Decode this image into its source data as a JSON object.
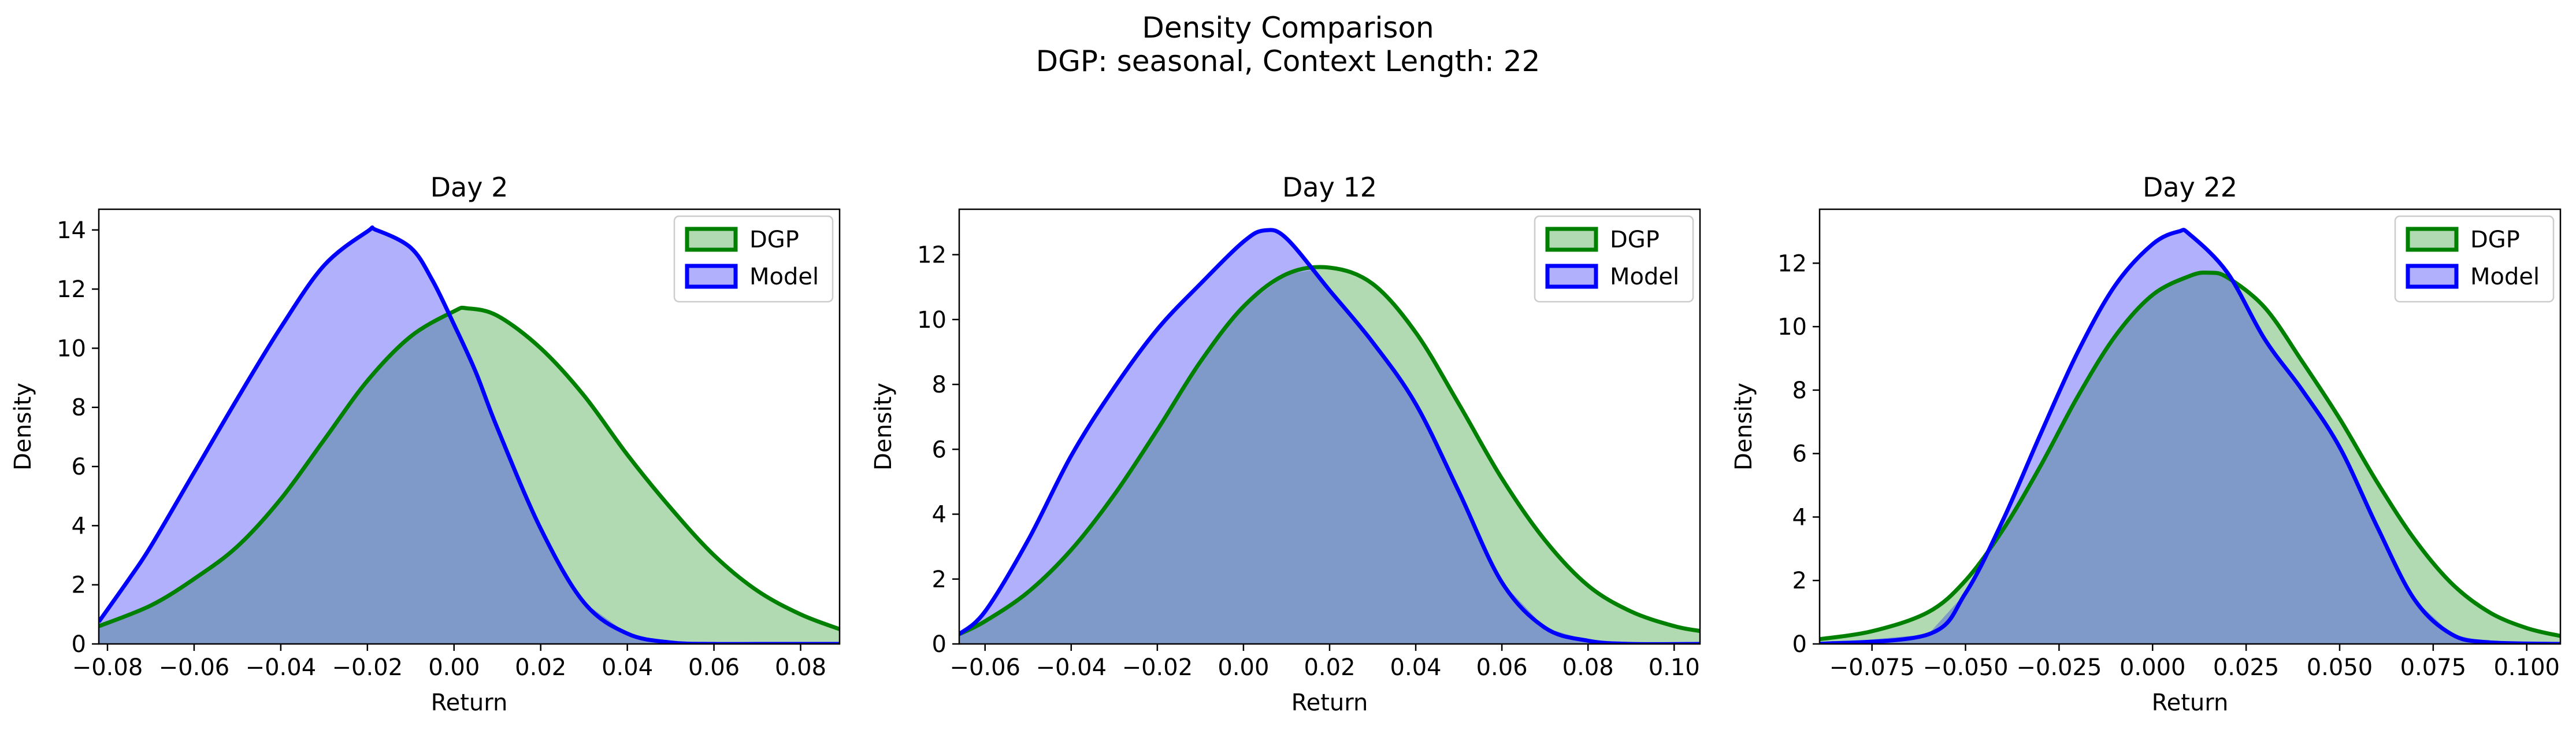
{
  "figure": {
    "title_line1": "Density Comparison",
    "title_line2": "DGP: seasonal, Context Length: 22"
  },
  "colors": {
    "dgp_line": "#008000",
    "dgp_fill": "#b2dab2",
    "model_line": "#0000ff",
    "model_fill": "#b0b0fc",
    "overlap_fill": "#7f99c9"
  },
  "chart_data": [
    {
      "type": "area",
      "title": "Day 2",
      "xlabel": "Return",
      "ylabel": "Density",
      "xlim": [
        -0.082,
        0.089
      ],
      "ylim": [
        0,
        14.7
      ],
      "xticks": [
        -0.08,
        -0.06,
        -0.04,
        -0.02,
        0.0,
        0.02,
        0.04,
        0.06,
        0.08
      ],
      "xtick_labels": [
        "−0.08",
        "−0.06",
        "−0.04",
        "−0.02",
        "0.00",
        "0.02",
        "0.04",
        "0.06",
        "0.08"
      ],
      "yticks": [
        0,
        2,
        4,
        6,
        8,
        10,
        12,
        14
      ],
      "ytick_labels": [
        "0",
        "2",
        "4",
        "6",
        "8",
        "10",
        "12",
        "14"
      ],
      "legend": {
        "placement": "upper right",
        "entries": [
          "DGP",
          "Model"
        ]
      },
      "series": [
        {
          "name": "DGP",
          "x": [
            -0.082,
            -0.07,
            -0.06,
            -0.05,
            -0.04,
            -0.03,
            -0.02,
            -0.01,
            0.0,
            0.003,
            0.01,
            0.02,
            0.03,
            0.04,
            0.05,
            0.06,
            0.07,
            0.08,
            0.089
          ],
          "y": [
            0.6,
            1.3,
            2.2,
            3.3,
            4.9,
            6.9,
            8.9,
            10.4,
            11.25,
            11.35,
            11.1,
            10.0,
            8.4,
            6.4,
            4.6,
            3.0,
            1.8,
            1.0,
            0.5
          ]
        },
        {
          "name": "Model",
          "x": [
            -0.082,
            -0.075,
            -0.07,
            -0.06,
            -0.05,
            -0.04,
            -0.03,
            -0.02,
            -0.018,
            -0.01,
            -0.005,
            0.0,
            0.005,
            0.01,
            0.02,
            0.03,
            0.04,
            0.05,
            0.06,
            0.07,
            0.089
          ],
          "y": [
            0.75,
            2.2,
            3.3,
            5.8,
            8.3,
            10.7,
            12.8,
            13.95,
            14.0,
            13.4,
            12.3,
            10.8,
            9.2,
            7.3,
            3.9,
            1.4,
            0.35,
            0.05,
            0.0,
            0.0,
            0.0
          ]
        }
      ]
    },
    {
      "type": "area",
      "title": "Day 12",
      "xlabel": "Return",
      "ylabel": "Density",
      "xlim": [
        -0.066,
        0.106
      ],
      "ylim": [
        0,
        13.4
      ],
      "xticks": [
        -0.06,
        -0.04,
        -0.02,
        0.0,
        0.02,
        0.04,
        0.06,
        0.08,
        0.1
      ],
      "xtick_labels": [
        "−0.06",
        "−0.04",
        "−0.02",
        "0.00",
        "0.02",
        "0.04",
        "0.06",
        "0.08",
        "0.10"
      ],
      "yticks": [
        0,
        2,
        4,
        6,
        8,
        10,
        12
      ],
      "ytick_labels": [
        "0",
        "2",
        "4",
        "6",
        "8",
        "10",
        "12"
      ],
      "legend": {
        "placement": "upper right",
        "entries": [
          "DGP",
          "Model"
        ]
      },
      "series": [
        {
          "name": "DGP",
          "x": [
            -0.066,
            -0.06,
            -0.05,
            -0.04,
            -0.03,
            -0.02,
            -0.01,
            0.0,
            0.01,
            0.02,
            0.03,
            0.04,
            0.05,
            0.06,
            0.07,
            0.08,
            0.09,
            0.1,
            0.106
          ],
          "y": [
            0.3,
            0.7,
            1.6,
            2.9,
            4.6,
            6.6,
            8.7,
            10.4,
            11.4,
            11.6,
            11.1,
            9.6,
            7.4,
            5.1,
            3.2,
            1.8,
            1.0,
            0.55,
            0.4
          ]
        },
        {
          "name": "Model",
          "x": [
            -0.066,
            -0.06,
            -0.05,
            -0.04,
            -0.03,
            -0.02,
            -0.01,
            0.0,
            0.005,
            0.01,
            0.02,
            0.03,
            0.04,
            0.05,
            0.06,
            0.07,
            0.08,
            0.09,
            0.106
          ],
          "y": [
            0.3,
            1.0,
            3.2,
            5.8,
            7.9,
            9.7,
            11.1,
            12.4,
            12.75,
            12.5,
            10.9,
            9.3,
            7.4,
            4.7,
            1.9,
            0.5,
            0.1,
            0.0,
            0.0
          ]
        }
      ]
    },
    {
      "type": "area",
      "title": "Day 22",
      "xlabel": "Return",
      "ylabel": "Density",
      "xlim": [
        -0.089,
        0.109
      ],
      "ylim": [
        0,
        13.7
      ],
      "xticks": [
        -0.075,
        -0.05,
        -0.025,
        0.0,
        0.025,
        0.05,
        0.075,
        0.1
      ],
      "xtick_labels": [
        "−0.075",
        "−0.050",
        "−0.025",
        "0.000",
        "0.025",
        "0.050",
        "0.075",
        "0.100"
      ],
      "yticks": [
        0,
        2,
        4,
        6,
        8,
        10,
        12
      ],
      "ytick_labels": [
        "0",
        "2",
        "4",
        "6",
        "8",
        "10",
        "12"
      ],
      "legend": {
        "placement": "upper right",
        "entries": [
          "DGP",
          "Model"
        ]
      },
      "series": [
        {
          "name": "DGP",
          "x": [
            -0.089,
            -0.075,
            -0.06,
            -0.05,
            -0.04,
            -0.03,
            -0.02,
            -0.01,
            0.0,
            0.01,
            0.015,
            0.02,
            0.03,
            0.04,
            0.05,
            0.06,
            0.07,
            0.08,
            0.09,
            0.1,
            0.109
          ],
          "y": [
            0.15,
            0.4,
            1.0,
            2.0,
            3.6,
            5.6,
            7.8,
            9.7,
            11.0,
            11.6,
            11.7,
            11.55,
            10.6,
            8.9,
            7.1,
            5.1,
            3.3,
            1.9,
            1.0,
            0.5,
            0.25
          ]
        },
        {
          "name": "Model",
          "x": [
            -0.089,
            -0.06,
            -0.05,
            -0.04,
            -0.03,
            -0.02,
            -0.01,
            0.0,
            0.007,
            0.01,
            0.02,
            0.03,
            0.04,
            0.05,
            0.06,
            0.07,
            0.08,
            0.09,
            0.109
          ],
          "y": [
            0.0,
            0.3,
            1.6,
            3.9,
            6.6,
            9.2,
            11.3,
            12.6,
            13.0,
            12.9,
            11.7,
            9.6,
            8.0,
            6.2,
            3.7,
            1.4,
            0.3,
            0.05,
            0.0
          ]
        }
      ]
    }
  ]
}
